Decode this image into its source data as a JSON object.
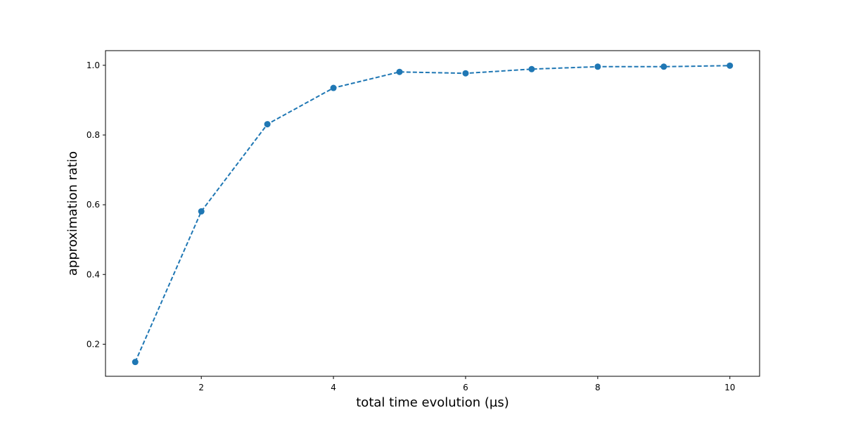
{
  "chart_data": {
    "type": "line",
    "title": "",
    "xlabel": "total time evolution (µs)",
    "ylabel": "approximation ratio",
    "xlim": [
      0.55,
      10.45
    ],
    "ylim": [
      0.108,
      1.042
    ],
    "xticks": [
      2,
      4,
      6,
      8,
      10
    ],
    "xtick_labels": [
      "2",
      "4",
      "6",
      "8",
      "10"
    ],
    "yticks": [
      0.2,
      0.4,
      0.6,
      0.8,
      1.0
    ],
    "ytick_labels": [
      "0.2",
      "0.4",
      "0.6",
      "0.8",
      "1.0"
    ],
    "grid": false,
    "legend": "none",
    "series": [
      {
        "x": [
          1,
          2,
          3,
          4,
          5,
          6,
          7,
          8,
          9,
          10
        ],
        "values": [
          0.149,
          0.581,
          0.831,
          0.935,
          0.981,
          0.977,
          0.989,
          0.996,
          0.996,
          0.999
        ],
        "color": "#1f77b4",
        "line_style": "dashed",
        "marker": "circle"
      }
    ]
  }
}
